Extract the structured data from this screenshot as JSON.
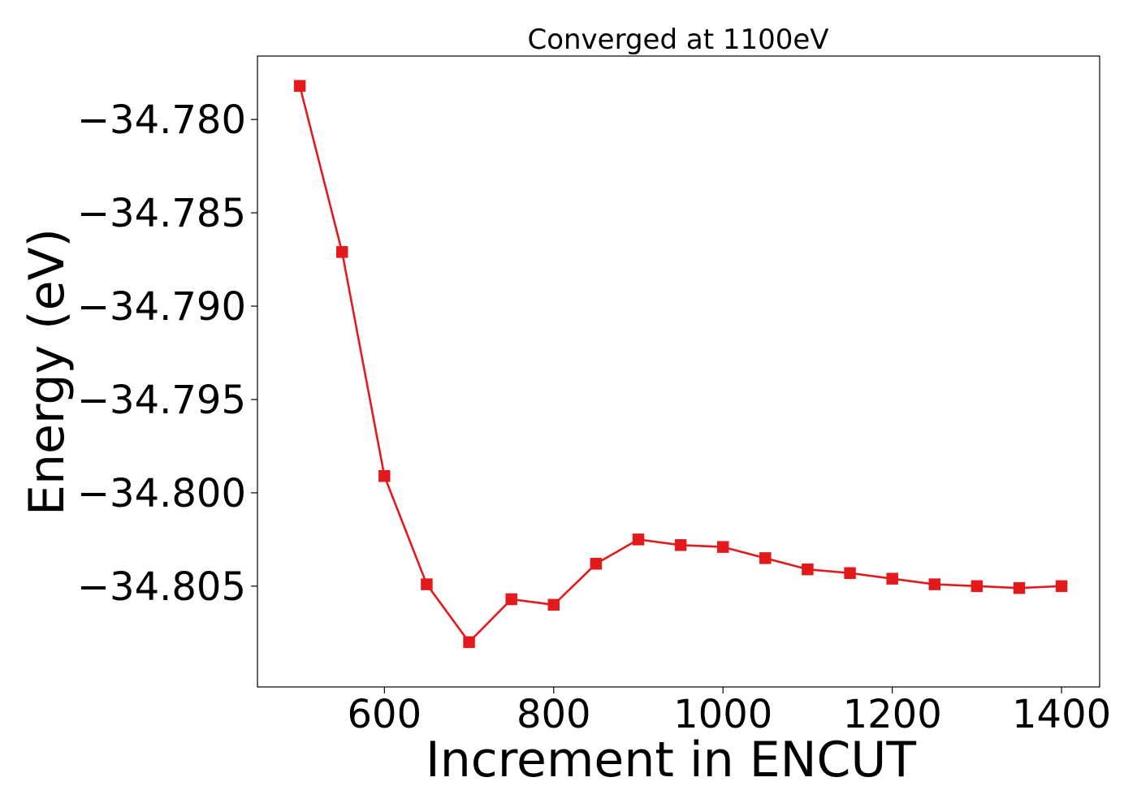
{
  "chart_data": {
    "type": "line",
    "title": "Converged at 1100eV",
    "xlabel": "Increment in ENCUT",
    "ylabel": "Energy (eV)",
    "xlim": [
      450,
      1445
    ],
    "ylim": [
      -34.8104,
      -34.7766
    ],
    "xticks": [
      600,
      800,
      1000,
      1200,
      1400
    ],
    "xtick_labels": [
      "600",
      "800",
      "1000",
      "1200",
      "1400"
    ],
    "yticks": [
      -34.78,
      -34.785,
      -34.79,
      -34.795,
      -34.8,
      -34.805
    ],
    "ytick_labels": [
      "−34.780",
      "−34.785",
      "−34.790",
      "−34.795",
      "−34.800",
      "−34.805"
    ],
    "grid": false,
    "marker": "square",
    "series": [
      {
        "color": "#e31a1c",
        "x": [
          500,
          550,
          600,
          650,
          700,
          750,
          800,
          850,
          900,
          950,
          1000,
          1050,
          1100,
          1150,
          1200,
          1250,
          1300,
          1350,
          1400
        ],
        "y": [
          -34.7782,
          -34.7871,
          -34.7991,
          -34.8049,
          -34.808,
          -34.8057,
          -34.806,
          -34.8038,
          -34.8025,
          -34.8028,
          -34.8029,
          -34.8035,
          -34.8041,
          -34.8043,
          -34.8046,
          -34.8049,
          -34.805,
          -34.8051,
          -34.805
        ]
      }
    ]
  }
}
